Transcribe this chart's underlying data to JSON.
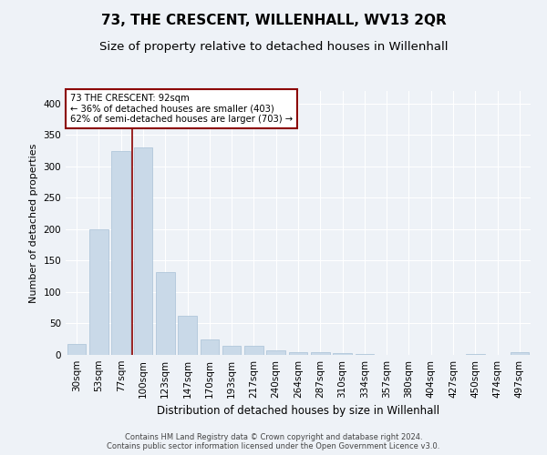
{
  "title": "73, THE CRESCENT, WILLENHALL, WV13 2QR",
  "subtitle": "Size of property relative to detached houses in Willenhall",
  "xlabel": "Distribution of detached houses by size in Willenhall",
  "ylabel": "Number of detached properties",
  "footer_line1": "Contains HM Land Registry data © Crown copyright and database right 2024.",
  "footer_line2": "Contains public sector information licensed under the Open Government Licence v3.0.",
  "bar_labels": [
    "30sqm",
    "53sqm",
    "77sqm",
    "100sqm",
    "123sqm",
    "147sqm",
    "170sqm",
    "193sqm",
    "217sqm",
    "240sqm",
    "264sqm",
    "287sqm",
    "310sqm",
    "334sqm",
    "357sqm",
    "380sqm",
    "404sqm",
    "427sqm",
    "450sqm",
    "474sqm",
    "497sqm"
  ],
  "bar_values": [
    17,
    200,
    325,
    330,
    132,
    62,
    25,
    15,
    14,
    7,
    4,
    4,
    3,
    2,
    0,
    0,
    0,
    0,
    2,
    0,
    5
  ],
  "bar_color": "#c9d9e8",
  "bar_edgecolor": "#a8c0d6",
  "annotation_line1": "73 THE CRESCENT: 92sqm",
  "annotation_line2": "← 36% of detached houses are smaller (403)",
  "annotation_line3": "62% of semi-detached houses are larger (703) →",
  "vline_color": "#8b0000",
  "vline_x": 2.5,
  "annotation_box_edgecolor": "#8b0000",
  "ylim": [
    0,
    420
  ],
  "yticks": [
    0,
    50,
    100,
    150,
    200,
    250,
    300,
    350,
    400
  ],
  "background_color": "#eef2f7",
  "plot_background": "#eef2f7",
  "grid_color": "#ffffff",
  "title_fontsize": 11,
  "subtitle_fontsize": 9.5,
  "tick_fontsize": 7.5,
  "ylabel_fontsize": 8,
  "xlabel_fontsize": 8.5
}
